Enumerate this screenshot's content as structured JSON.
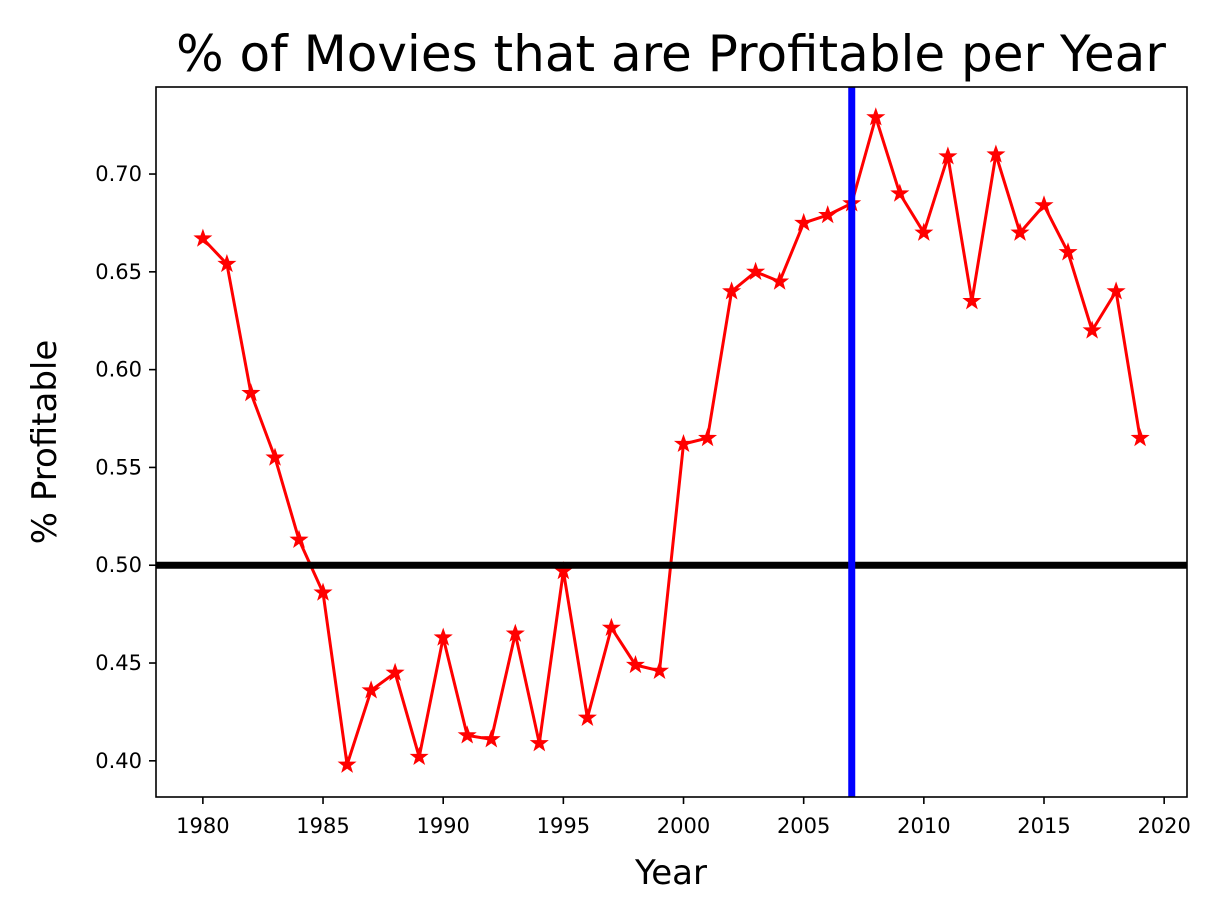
{
  "chart_data": {
    "type": "line",
    "title": "% of Movies that are Profitable per Year",
    "xlabel": "Year",
    "ylabel": "% Profitable",
    "xlim": [
      1978.05,
      2020.95
    ],
    "ylim": [
      0.3815,
      0.7445
    ],
    "xticks": [
      1980,
      1985,
      1990,
      1995,
      2000,
      2005,
      2010,
      2015,
      2020
    ],
    "yticks": [
      0.4,
      0.45,
      0.5,
      0.55,
      0.6,
      0.65,
      0.7
    ],
    "xtick_labels": [
      "1980",
      "1985",
      "1990",
      "1995",
      "2000",
      "2005",
      "2010",
      "2015",
      "2020"
    ],
    "ytick_labels": [
      "0.40",
      "0.45",
      "0.50",
      "0.55",
      "0.60",
      "0.65",
      "0.70"
    ],
    "grid": false,
    "series": [
      {
        "color": "#ff0000",
        "marker": "star",
        "x": [
          1980,
          1981,
          1982,
          1983,
          1984,
          1985,
          1986,
          1987,
          1988,
          1989,
          1990,
          1991,
          1992,
          1993,
          1994,
          1995,
          1996,
          1997,
          1998,
          1999,
          2000,
          2001,
          2002,
          2003,
          2004,
          2005,
          2006,
          2007,
          2008,
          2009,
          2010,
          2011,
          2012,
          2013,
          2014,
          2015,
          2016,
          2017,
          2018,
          2019
        ],
        "y": [
          0.667,
          0.654,
          0.588,
          0.555,
          0.513,
          0.486,
          0.398,
          0.436,
          0.445,
          0.402,
          0.463,
          0.413,
          0.411,
          0.465,
          0.409,
          0.497,
          0.422,
          0.468,
          0.449,
          0.446,
          0.562,
          0.565,
          0.64,
          0.65,
          0.645,
          0.675,
          0.679,
          0.685,
          0.729,
          0.69,
          0.67,
          0.709,
          0.635,
          0.71,
          0.67,
          0.684,
          0.66,
          0.62,
          0.64,
          0.565
        ]
      }
    ],
    "reference_lines": [
      {
        "orientation": "horizontal",
        "value": 0.5,
        "color": "#000000"
      },
      {
        "orientation": "vertical",
        "value": 2007,
        "color": "#0000ff"
      }
    ]
  }
}
